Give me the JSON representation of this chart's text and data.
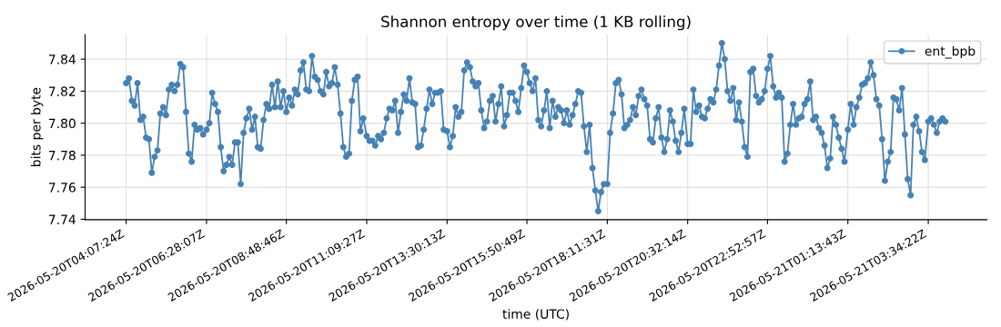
{
  "chart_data": {
    "type": "line",
    "title": "Shannon entropy over time (1 KB rolling)",
    "xlabel": "time (UTC)",
    "ylabel": "bits per byte",
    "x": [
      "2026-05-20T04:07",
      "2026-05-20T04:12",
      "2026-05-20T04:17",
      "2026-05-20T04:22",
      "2026-05-20T04:27",
      "2026-05-20T04:32",
      "2026-05-20T04:37",
      "2026-05-20T04:42",
      "2026-05-20T04:47",
      "2026-05-20T04:52",
      "2026-05-20T04:57",
      "2026-05-20T05:02",
      "2026-05-20T05:07",
      "2026-05-20T05:12",
      "2026-05-20T05:17",
      "2026-05-20T05:22",
      "2026-05-20T05:27",
      "2026-05-20T05:32",
      "2026-05-20T05:37",
      "2026-05-20T05:42",
      "2026-05-20T05:47",
      "2026-05-20T05:52",
      "2026-05-20T05:57",
      "2026-05-20T06:02",
      "2026-05-20T06:07",
      "2026-05-20T06:12",
      "2026-05-20T06:17",
      "2026-05-20T06:22",
      "2026-05-20T06:28",
      "2026-05-20T06:33",
      "2026-05-20T06:38",
      "2026-05-20T06:43",
      "2026-05-20T06:48",
      "2026-05-20T06:53",
      "2026-05-20T06:58",
      "2026-05-20T07:03",
      "2026-05-20T07:08",
      "2026-05-20T07:13",
      "2026-05-20T07:18",
      "2026-05-20T07:23",
      "2026-05-20T07:28",
      "2026-05-20T07:33",
      "2026-05-20T07:38",
      "2026-05-20T07:43",
      "2026-05-20T07:48",
      "2026-05-20T07:53",
      "2026-05-20T07:58",
      "2026-05-20T08:03",
      "2026-05-20T08:08",
      "2026-05-20T08:13",
      "2026-05-20T08:18",
      "2026-05-20T08:23",
      "2026-05-20T08:28",
      "2026-05-20T08:33",
      "2026-05-20T08:38",
      "2026-05-20T08:43",
      "2026-05-20T08:48",
      "2026-05-20T08:53",
      "2026-05-20T08:58",
      "2026-05-20T09:03",
      "2026-05-20T09:08",
      "2026-05-20T09:13",
      "2026-05-20T09:18",
      "2026-05-20T09:23",
      "2026-05-20T09:28",
      "2026-05-20T09:33",
      "2026-05-20T09:38",
      "2026-05-20T09:43",
      "2026-05-20T09:48",
      "2026-05-20T09:53",
      "2026-05-20T09:58",
      "2026-05-20T10:03",
      "2026-05-20T10:08",
      "2026-05-20T10:13",
      "2026-05-20T10:18",
      "2026-05-20T10:23",
      "2026-05-20T10:28",
      "2026-05-20T10:33",
      "2026-05-20T10:38",
      "2026-05-20T10:43",
      "2026-05-20T10:48",
      "2026-05-20T10:53",
      "2026-05-20T10:58",
      "2026-05-20T11:03",
      "2026-05-20T11:09",
      "2026-05-20T11:14",
      "2026-05-20T11:19",
      "2026-05-20T11:24",
      "2026-05-20T11:29",
      "2026-05-20T11:34",
      "2026-05-20T11:39",
      "2026-05-20T11:44",
      "2026-05-20T11:49",
      "2026-05-20T11:54",
      "2026-05-20T11:59",
      "2026-05-20T12:04",
      "2026-05-20T12:09",
      "2026-05-20T12:14",
      "2026-05-20T12:19",
      "2026-05-20T12:24",
      "2026-05-20T12:29",
      "2026-05-20T12:34",
      "2026-05-20T12:39",
      "2026-05-20T12:44",
      "2026-05-20T12:49",
      "2026-05-20T12:54",
      "2026-05-20T12:59",
      "2026-05-20T13:04",
      "2026-05-20T13:09",
      "2026-05-20T13:14",
      "2026-05-20T13:19",
      "2026-05-20T13:24",
      "2026-05-20T13:30",
      "2026-05-20T13:35",
      "2026-05-20T13:40",
      "2026-05-20T13:45",
      "2026-05-20T13:50",
      "2026-05-20T13:55",
      "2026-05-20T14:00",
      "2026-05-20T14:05",
      "2026-05-20T14:10",
      "2026-05-20T14:15",
      "2026-05-20T14:20",
      "2026-05-20T14:25",
      "2026-05-20T14:30",
      "2026-05-20T14:35",
      "2026-05-20T14:40",
      "2026-05-20T14:45",
      "2026-05-20T14:50",
      "2026-05-20T14:55",
      "2026-05-20T15:00",
      "2026-05-20T15:05",
      "2026-05-20T15:10",
      "2026-05-20T15:15",
      "2026-05-20T15:20",
      "2026-05-20T15:25",
      "2026-05-20T15:30",
      "2026-05-20T15:35",
      "2026-05-20T15:40",
      "2026-05-20T15:45",
      "2026-05-20T15:50",
      "2026-05-20T15:55",
      "2026-05-20T16:00",
      "2026-05-20T16:05",
      "2026-05-20T16:10",
      "2026-05-20T16:15",
      "2026-05-20T16:20",
      "2026-05-20T16:25",
      "2026-05-20T16:30",
      "2026-05-20T16:35",
      "2026-05-20T16:40",
      "2026-05-20T16:45",
      "2026-05-20T16:50",
      "2026-05-20T16:55",
      "2026-05-20T17:00",
      "2026-05-20T17:05",
      "2026-05-20T17:10",
      "2026-05-20T17:15",
      "2026-05-20T17:20",
      "2026-05-20T17:25",
      "2026-05-20T17:30",
      "2026-05-20T17:35",
      "2026-05-20T17:40",
      "2026-05-20T17:45",
      "2026-05-20T17:50",
      "2026-05-20T17:55",
      "2026-05-20T18:00",
      "2026-05-20T18:05",
      "2026-05-20T18:11",
      "2026-05-20T18:16",
      "2026-05-20T18:21",
      "2026-05-20T18:26",
      "2026-05-20T18:31",
      "2026-05-20T18:36",
      "2026-05-20T18:41",
      "2026-05-20T18:46",
      "2026-05-20T18:51",
      "2026-05-20T18:56",
      "2026-05-20T19:01",
      "2026-05-20T19:06",
      "2026-05-20T19:11",
      "2026-05-20T19:16",
      "2026-05-20T19:21",
      "2026-05-20T19:26",
      "2026-05-20T19:31",
      "2026-05-20T19:36",
      "2026-05-20T19:41",
      "2026-05-20T19:46",
      "2026-05-20T19:51",
      "2026-05-20T19:56",
      "2026-05-20T20:01",
      "2026-05-20T20:06",
      "2026-05-20T20:11",
      "2026-05-20T20:16",
      "2026-05-20T20:21",
      "2026-05-20T20:26",
      "2026-05-20T20:32",
      "2026-05-20T20:37",
      "2026-05-20T20:42",
      "2026-05-20T20:47",
      "2026-05-20T20:52",
      "2026-05-20T20:57",
      "2026-05-20T21:02",
      "2026-05-20T21:07",
      "2026-05-20T21:12",
      "2026-05-20T21:17",
      "2026-05-20T21:22",
      "2026-05-20T21:27",
      "2026-05-20T21:32",
      "2026-05-20T21:37",
      "2026-05-20T21:42",
      "2026-05-20T21:47",
      "2026-05-20T21:52",
      "2026-05-20T21:57",
      "2026-05-20T22:02",
      "2026-05-20T22:07",
      "2026-05-20T22:12",
      "2026-05-20T22:17",
      "2026-05-20T22:22",
      "2026-05-20T22:27",
      "2026-05-20T22:32",
      "2026-05-20T22:37",
      "2026-05-20T22:42",
      "2026-05-20T22:47",
      "2026-05-20T22:52",
      "2026-05-20T22:57",
      "2026-05-20T23:02",
      "2026-05-20T23:07",
      "2026-05-20T23:12",
      "2026-05-20T23:17",
      "2026-05-20T23:22",
      "2026-05-20T23:27",
      "2026-05-20T23:32",
      "2026-05-20T23:37",
      "2026-05-20T23:42",
      "2026-05-20T23:47",
      "2026-05-20T23:52",
      "2026-05-20T23:57",
      "2026-05-21T00:02",
      "2026-05-21T00:07",
      "2026-05-21T00:12",
      "2026-05-21T00:17",
      "2026-05-21T00:22",
      "2026-05-21T00:27",
      "2026-05-21T00:32",
      "2026-05-21T00:37",
      "2026-05-21T00:42",
      "2026-05-21T00:47",
      "2026-05-21T00:52",
      "2026-05-21T00:57",
      "2026-05-21T01:02",
      "2026-05-21T01:07",
      "2026-05-21T01:13",
      "2026-05-21T01:18",
      "2026-05-21T01:23",
      "2026-05-21T01:28",
      "2026-05-21T01:33",
      "2026-05-21T01:38",
      "2026-05-21T01:43",
      "2026-05-21T01:48",
      "2026-05-21T01:53",
      "2026-05-21T01:58",
      "2026-05-21T02:03",
      "2026-05-21T02:08",
      "2026-05-21T02:13",
      "2026-05-21T02:18",
      "2026-05-21T02:23",
      "2026-05-21T02:28",
      "2026-05-21T02:33",
      "2026-05-21T02:38",
      "2026-05-21T02:43",
      "2026-05-21T02:48",
      "2026-05-21T02:53",
      "2026-05-21T02:58",
      "2026-05-21T03:03",
      "2026-05-21T03:08",
      "2026-05-21T03:13",
      "2026-05-21T03:18",
      "2026-05-21T03:23",
      "2026-05-21T03:28",
      "2026-05-21T03:34",
      "2026-05-21T03:39",
      "2026-05-21T03:44",
      "2026-05-21T03:49",
      "2026-05-21T03:54",
      "2026-05-21T03:59",
      "2026-05-21T04:04"
    ],
    "xlim": [
      "2026-05-20T02:55",
      "2026-05-21T05:17"
    ],
    "xticks": [
      {
        "value": "2026-05-20T04:07",
        "label": "2026-05-20T04:07:24Z"
      },
      {
        "value": "2026-05-20T06:28",
        "label": "2026-05-20T06:28:07Z"
      },
      {
        "value": "2026-05-20T08:48",
        "label": "2026-05-20T08:48:46Z"
      },
      {
        "value": "2026-05-20T11:09",
        "label": "2026-05-20T11:09:27Z"
      },
      {
        "value": "2026-05-20T13:30",
        "label": "2026-05-20T13:30:13Z"
      },
      {
        "value": "2026-05-20T15:50",
        "label": "2026-05-20T15:50:49Z"
      },
      {
        "value": "2026-05-20T18:11",
        "label": "2026-05-20T18:11:31Z"
      },
      {
        "value": "2026-05-20T20:32",
        "label": "2026-05-20T20:32:14Z"
      },
      {
        "value": "2026-05-20T22:52",
        "label": "2026-05-20T22:52:57Z"
      },
      {
        "value": "2026-05-21T01:13",
        "label": "2026-05-21T01:13:43Z"
      },
      {
        "value": "2026-05-21T03:34",
        "label": "2026-05-21T03:34:22Z"
      }
    ],
    "series": [
      {
        "name": "ent_bpb",
        "color": "#4682b4",
        "values": [
          7.825,
          7.828,
          7.814,
          7.811,
          7.825,
          7.802,
          7.804,
          7.791,
          7.79,
          7.769,
          7.779,
          7.783,
          7.806,
          7.81,
          7.805,
          7.821,
          7.824,
          7.82,
          7.824,
          7.837,
          7.835,
          7.807,
          7.781,
          7.776,
          7.799,
          7.796,
          7.797,
          7.793,
          7.796,
          7.8,
          7.819,
          7.812,
          7.807,
          7.785,
          7.77,
          7.774,
          7.779,
          7.774,
          7.788,
          7.788,
          7.762,
          7.794,
          7.803,
          7.809,
          7.796,
          7.804,
          7.785,
          7.784,
          7.802,
          7.812,
          7.809,
          7.824,
          7.81,
          7.826,
          7.81,
          7.82,
          7.807,
          7.816,
          7.811,
          7.821,
          7.818,
          7.833,
          7.838,
          7.821,
          7.82,
          7.842,
          7.829,
          7.827,
          7.82,
          7.818,
          7.832,
          7.823,
          7.825,
          7.835,
          7.824,
          7.806,
          7.785,
          7.779,
          7.781,
          7.814,
          7.827,
          7.829,
          7.795,
          7.803,
          7.792,
          7.789,
          7.789,
          7.786,
          7.792,
          7.79,
          7.794,
          7.803,
          7.809,
          7.808,
          7.814,
          7.794,
          7.807,
          7.818,
          7.814,
          7.828,
          7.813,
          7.812,
          7.785,
          7.786,
          7.796,
          7.809,
          7.821,
          7.812,
          7.819,
          7.819,
          7.82,
          7.796,
          7.795,
          7.785,
          7.792,
          7.81,
          7.804,
          7.807,
          7.833,
          7.838,
          7.835,
          7.826,
          7.823,
          7.825,
          7.808,
          7.797,
          7.801,
          7.814,
          7.817,
          7.801,
          7.812,
          7.823,
          7.798,
          7.805,
          7.819,
          7.819,
          7.814,
          7.807,
          7.822,
          7.836,
          7.832,
          7.825,
          7.82,
          7.828,
          7.802,
          7.798,
          7.808,
          7.82,
          7.797,
          7.814,
          7.804,
          7.81,
          7.808,
          7.8,
          7.808,
          7.799,
          7.805,
          7.812,
          7.82,
          7.819,
          7.798,
          7.782,
          7.799,
          7.772,
          7.758,
          7.745,
          7.757,
          7.762,
          7.762,
          7.794,
          7.806,
          7.825,
          7.827,
          7.818,
          7.797,
          7.799,
          7.802,
          7.81,
          7.805,
          7.817,
          7.821,
          7.815,
          7.811,
          7.79,
          7.788,
          7.803,
          7.81,
          7.791,
          7.782,
          7.79,
          7.808,
          7.801,
          7.789,
          7.782,
          7.794,
          7.809,
          7.787,
          7.787,
          7.821,
          7.807,
          7.811,
          7.804,
          7.803,
          7.809,
          7.815,
          7.813,
          7.821,
          7.836,
          7.85,
          7.84,
          7.82,
          7.814,
          7.822,
          7.802,
          7.813,
          7.801,
          7.785,
          7.779,
          7.832,
          7.834,
          7.817,
          7.813,
          7.815,
          7.82,
          7.834,
          7.842,
          7.823,
          7.816,
          7.819,
          7.816,
          7.776,
          7.781,
          7.799,
          7.812,
          7.799,
          7.803,
          7.804,
          7.812,
          7.815,
          7.826,
          7.802,
          7.804,
          7.797,
          7.794,
          7.786,
          7.772,
          7.778,
          7.804,
          7.799,
          7.791,
          7.784,
          7.776,
          7.796,
          7.812,
          7.799,
          7.81,
          7.816,
          7.824,
          7.825,
          7.828,
          7.838,
          7.83,
          7.815,
          7.811,
          7.79,
          7.764,
          7.776,
          7.782,
          7.816,
          7.815,
          7.808,
          7.822,
          7.793,
          7.765,
          7.755,
          7.799,
          7.804,
          7.795,
          7.782,
          7.777,
          7.801,
          7.803,
          7.799,
          7.794,
          7.801,
          7.803,
          7.801
        ]
      }
    ],
    "ylim": [
      7.7397,
      7.8553
    ],
    "yticks": [
      7.74,
      7.76,
      7.78,
      {
        "value": 7.8,
        "label": "7.80"
      },
      7.82,
      7.84
    ],
    "grid": true,
    "legend": "top right",
    "marker": "circle",
    "line_style": "solid"
  }
}
